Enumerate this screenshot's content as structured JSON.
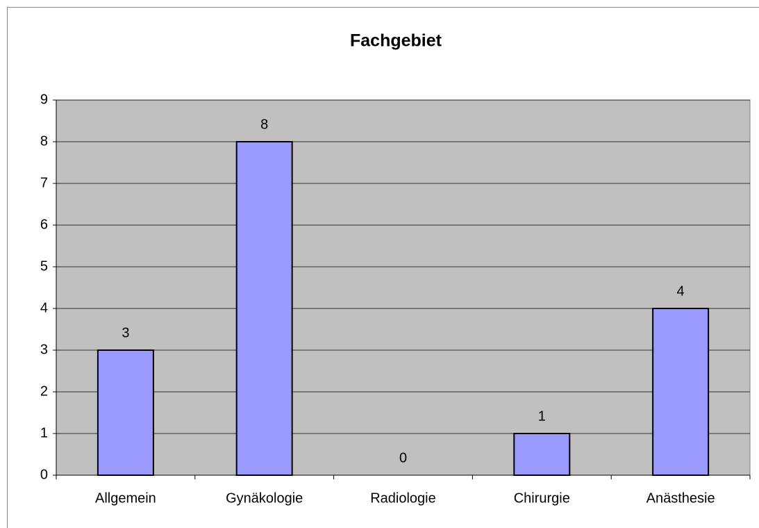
{
  "chart_data": {
    "type": "bar",
    "title": "Fachgebiet",
    "categories": [
      "Allgemein",
      "Gynäkologie",
      "Radiologie",
      "Chirurgie",
      "Anästhesie"
    ],
    "values": [
      3,
      8,
      0,
      1,
      4
    ],
    "color": "#9999ff",
    "ylim": [
      0,
      9
    ],
    "yticks": [
      0,
      1,
      2,
      3,
      4,
      5,
      6,
      7,
      8,
      9
    ],
    "grid": true,
    "data_labels": true
  }
}
